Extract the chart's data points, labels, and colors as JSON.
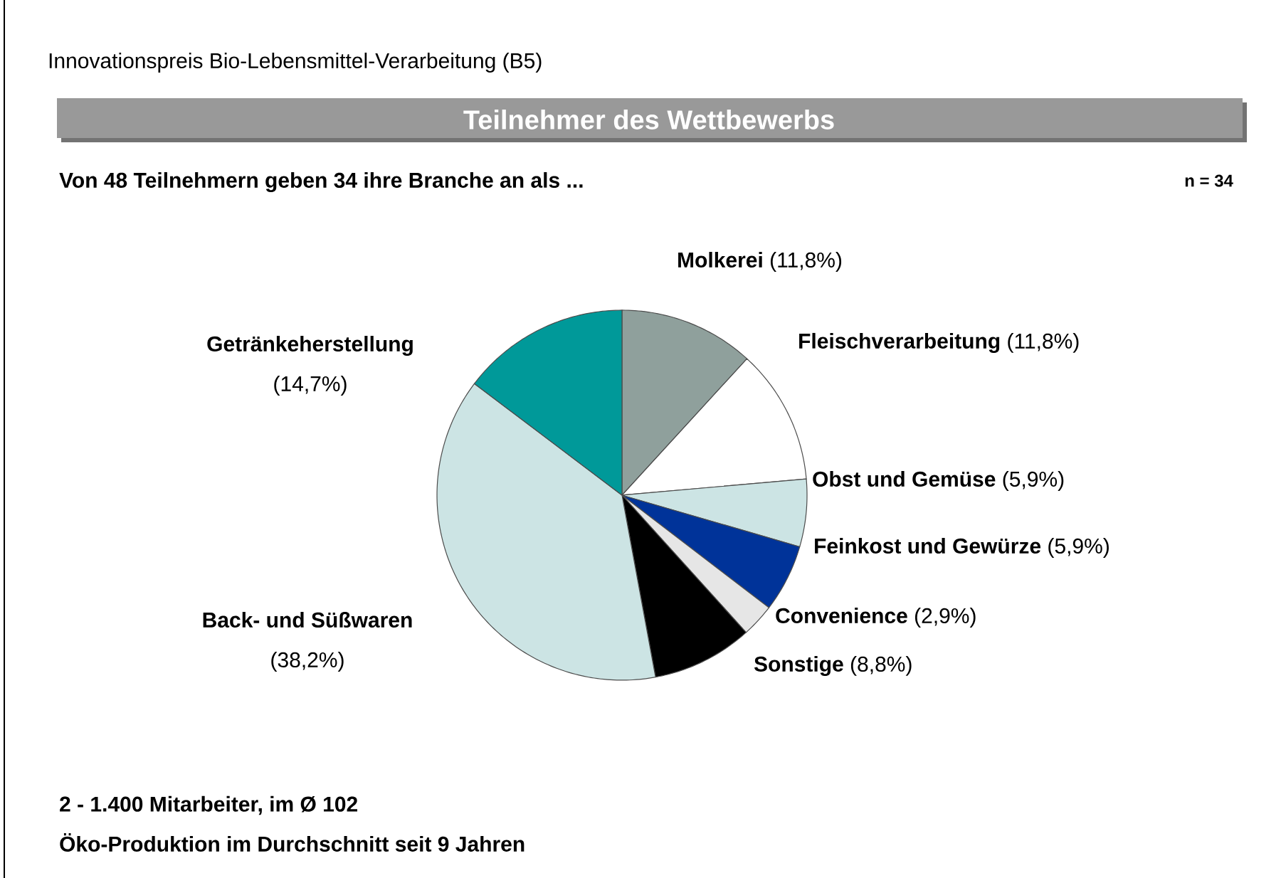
{
  "chart_data": {
    "type": "pie",
    "title": "Teilnehmer des Wettbewerbs",
    "subtitle": "Von 48 Teilnehmern geben 34 ihre Branche an als ...",
    "categories": [
      "Molkerei",
      "Fleischverarbeitung",
      "Obst und Gemüse",
      "Feinkost und Gewürze",
      "Convenience",
      "Sonstige",
      "Back- und Süßwaren",
      "Getränkeherstellung"
    ],
    "values": [
      11.8,
      11.8,
      5.9,
      5.9,
      2.9,
      8.8,
      38.2,
      14.7
    ],
    "value_labels": [
      "(11,8%)",
      "(11,8%)",
      "(5,9%)",
      "(5,9%)",
      "(2,9%)",
      "(8,8%)",
      "(38,2%)",
      "(14,7%)"
    ],
    "colors": [
      "#8fa09c",
      "#ffffff",
      "#cce4e4",
      "#003399",
      "#e6e6e6",
      "#000000",
      "#cce4e4",
      "#009999"
    ],
    "annotations": [
      "Innovationspreis Bio-Lebensmittel-Verarbeitung (B5)",
      "n = 34",
      "2 - 1.400 Mitarbeiter, im Ø 102",
      "Öko-Produktion im Durchschnitt seit 9 Jahren"
    ]
  }
}
